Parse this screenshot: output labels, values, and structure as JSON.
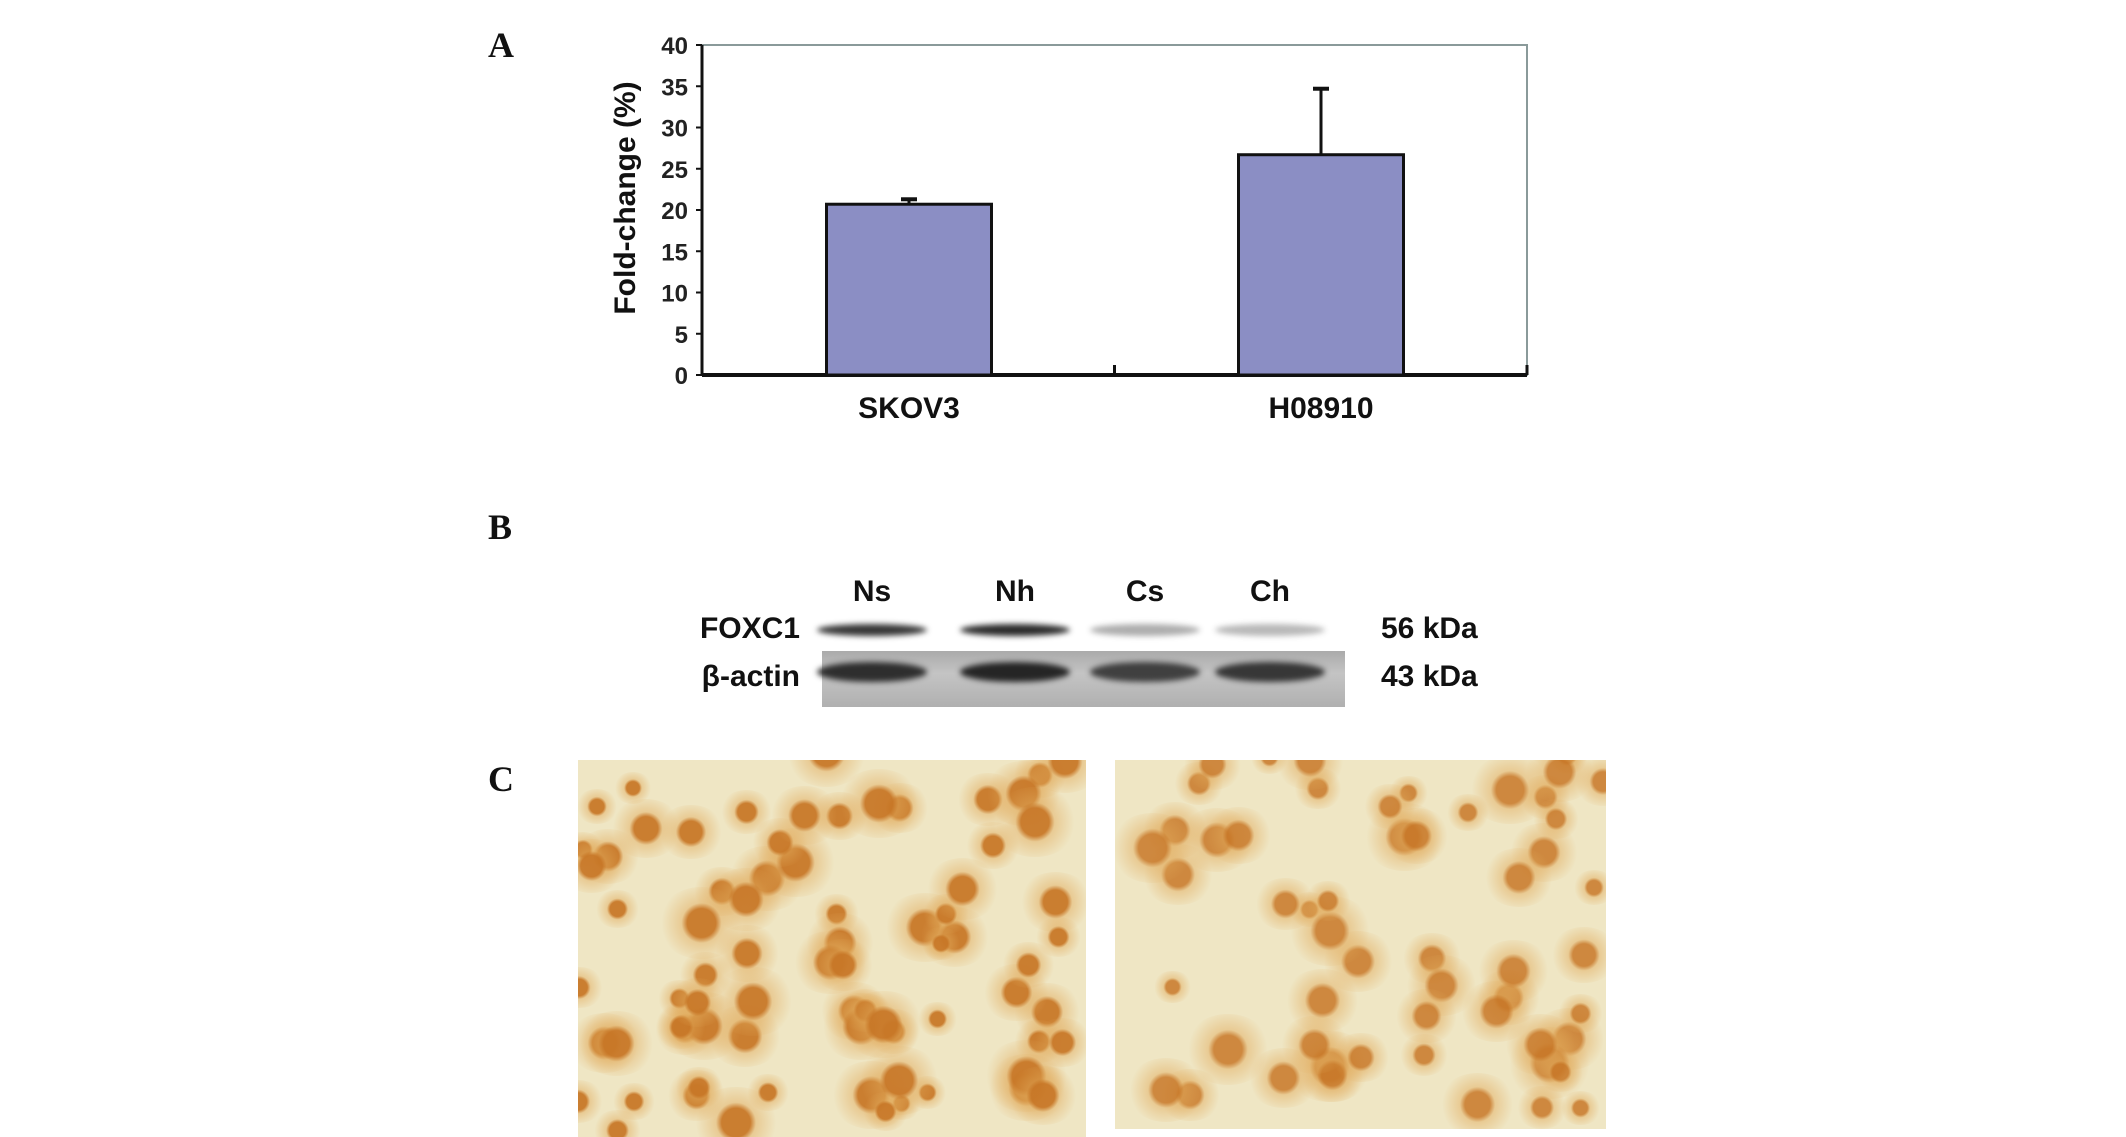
{
  "panels": {
    "a": "A",
    "b": "B",
    "c": "C"
  },
  "chart_data": {
    "type": "bar",
    "categories": [
      "SKOV3",
      "H08910"
    ],
    "values": [
      20.7,
      26.7
    ],
    "error_upper": [
      21.3,
      34.7
    ],
    "xlabel": "",
    "ylabel": "Fold-change (%)",
    "ylim": [
      0,
      40
    ],
    "yticks": [
      0,
      5,
      10,
      15,
      20,
      25,
      30,
      35,
      40
    ],
    "grid": false,
    "bar_color": "#8b8ec4"
  },
  "blot": {
    "lanes": [
      "Ns",
      "Nh",
      "Cs",
      "Ch"
    ],
    "rows": [
      {
        "label": "FOXC1",
        "size": "56 kDa",
        "intensity": [
          0.85,
          0.9,
          0.35,
          0.3
        ]
      },
      {
        "label": "β-actin",
        "size": "43 kDa",
        "intensity": [
          0.85,
          0.9,
          0.75,
          0.8
        ]
      }
    ]
  },
  "micrographs": {
    "stain_color": "#d9952f",
    "background": "#efe6c4"
  }
}
